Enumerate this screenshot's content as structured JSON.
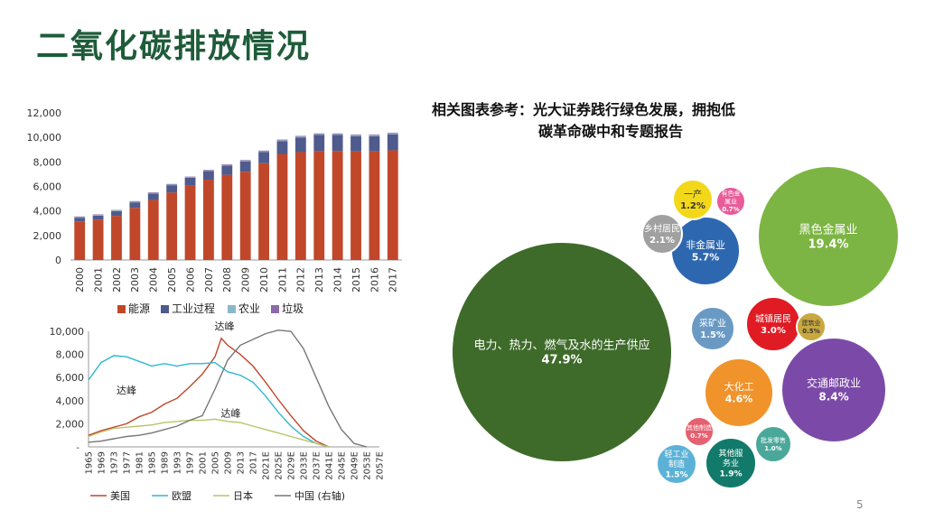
{
  "title": "二氧化碳排放情况",
  "reference_line1": "相关图表参考：光大证券践行绿色发展，拥抱低",
  "reference_line2": "碳革命碳中和专题报告",
  "page_number": "5",
  "chart_data": [
    {
      "type": "bar",
      "stacked": true,
      "categories": [
        "2000",
        "2001",
        "2002",
        "2003",
        "2004",
        "2005",
        "2006",
        "2007",
        "2008",
        "2009",
        "2010",
        "2011",
        "2012",
        "2013",
        "2014",
        "2015",
        "2016",
        "2017"
      ],
      "ylim": [
        0,
        12000
      ],
      "yticks": [
        "0",
        "2,000",
        "4,000",
        "6,000",
        "8,000",
        "10,000",
        "12,000"
      ],
      "grid": false,
      "legend_position": "bottom",
      "colors": {
        "能源": "#c0472a",
        "工业过程": "#4f5b8c",
        "农业": "#8ab8c8",
        "垃圾": "#8a6aa8"
      },
      "series": [
        {
          "name": "能源",
          "values": [
            3150,
            3300,
            3600,
            4250,
            4900,
            5500,
            6050,
            6550,
            6950,
            7200,
            7900,
            8650,
            8800,
            8900,
            8900,
            8850,
            8850,
            8950
          ]
        },
        {
          "name": "工业过程",
          "values": [
            300,
            320,
            380,
            450,
            520,
            600,
            650,
            700,
            750,
            850,
            900,
            1050,
            1200,
            1300,
            1300,
            1250,
            1250,
            1300
          ]
        },
        {
          "name": "农业",
          "values": [
            50,
            50,
            50,
            50,
            50,
            50,
            50,
            50,
            50,
            50,
            60,
            60,
            60,
            60,
            60,
            60,
            60,
            60
          ]
        },
        {
          "name": "垃圾",
          "values": [
            50,
            50,
            50,
            50,
            50,
            50,
            50,
            50,
            50,
            50,
            60,
            60,
            60,
            60,
            60,
            60,
            60,
            60
          ]
        }
      ]
    },
    {
      "type": "line",
      "xticks": [
        "1965",
        "1969",
        "1973",
        "1977",
        "1981",
        "1985",
        "1989",
        "1993",
        "1997",
        "2001",
        "2005",
        "2009",
        "2013",
        "2017",
        "2021E",
        "2025E",
        "2029E",
        "2033E",
        "2037E",
        "2041E",
        "2045E",
        "2049E",
        "2053E",
        "2057E"
      ],
      "ylim": [
        0,
        10000
      ],
      "yticks": [
        "2,000",
        "4,000",
        "6,000",
        "8,000",
        "10,000"
      ],
      "legend_position": "bottom",
      "annotations": [
        {
          "text": "达峰",
          "x": "2008",
          "y": 10150
        },
        {
          "text": "达峰",
          "x": "1977",
          "y": 4600
        },
        {
          "text": "达峰",
          "x": "2010",
          "y": 2600
        }
      ],
      "series": [
        {
          "name": "美国",
          "color": "#c0472a",
          "points": [
            [
              1965,
              1000
            ],
            [
              1969,
              1400
            ],
            [
              1973,
              1700
            ],
            [
              1977,
              2000
            ],
            [
              1981,
              2600
            ],
            [
              1985,
              3000
            ],
            [
              1989,
              3700
            ],
            [
              1993,
              4200
            ],
            [
              1997,
              5200
            ],
            [
              2001,
              6300
            ],
            [
              2005,
              7800
            ],
            [
              2007,
              9400
            ],
            [
              2009,
              8800
            ],
            [
              2013,
              8000
            ],
            [
              2017,
              7000
            ],
            [
              2021,
              5600
            ],
            [
              2025,
              4100
            ],
            [
              2029,
              2700
            ],
            [
              2033,
              1400
            ],
            [
              2037,
              500
            ],
            [
              2041,
              0
            ]
          ]
        },
        {
          "name": "欧盟",
          "color": "#2fb7d0",
          "points": [
            [
              1965,
              5800
            ],
            [
              1969,
              7300
            ],
            [
              1973,
              7900
            ],
            [
              1977,
              7800
            ],
            [
              1981,
              7400
            ],
            [
              1985,
              7000
            ],
            [
              1989,
              7200
            ],
            [
              1993,
              7000
            ],
            [
              1997,
              7200
            ],
            [
              2001,
              7200
            ],
            [
              2005,
              7300
            ],
            [
              2009,
              6500
            ],
            [
              2013,
              6200
            ],
            [
              2017,
              5600
            ],
            [
              2021,
              4400
            ],
            [
              2025,
              3000
            ],
            [
              2029,
              1800
            ],
            [
              2033,
              900
            ],
            [
              2037,
              300
            ],
            [
              2041,
              0
            ]
          ]
        },
        {
          "name": "日本",
          "color": "#b8c46a",
          "points": [
            [
              1965,
              900
            ],
            [
              1969,
              1300
            ],
            [
              1973,
              1600
            ],
            [
              1977,
              1700
            ],
            [
              1981,
              1800
            ],
            [
              1985,
              1900
            ],
            [
              1989,
              2100
            ],
            [
              1993,
              2200
            ],
            [
              1997,
              2300
            ],
            [
              2001,
              2300
            ],
            [
              2005,
              2400
            ],
            [
              2009,
              2200
            ],
            [
              2013,
              2100
            ],
            [
              2017,
              1800
            ],
            [
              2021,
              1500
            ],
            [
              2025,
              1200
            ],
            [
              2029,
              900
            ],
            [
              2033,
              600
            ],
            [
              2037,
              300
            ],
            [
              2041,
              0
            ]
          ]
        },
        {
          "name": "中国 (右轴)",
          "color": "#777777",
          "points": [
            [
              1965,
              400
            ],
            [
              1969,
              500
            ],
            [
              1973,
              700
            ],
            [
              1977,
              900
            ],
            [
              1981,
              1000
            ],
            [
              1985,
              1200
            ],
            [
              1989,
              1500
            ],
            [
              1993,
              1800
            ],
            [
              1997,
              2300
            ],
            [
              2001,
              2700
            ],
            [
              2005,
              5000
            ],
            [
              2009,
              7500
            ],
            [
              2013,
              8800
            ],
            [
              2017,
              9300
            ],
            [
              2021,
              9800
            ],
            [
              2025,
              10100
            ],
            [
              2029,
              10000
            ],
            [
              2033,
              8500
            ],
            [
              2037,
              6000
            ],
            [
              2041,
              3500
            ],
            [
              2045,
              1500
            ],
            [
              2049,
              300
            ],
            [
              2053,
              0
            ]
          ]
        }
      ]
    },
    {
      "type": "bubble",
      "bubbles": [
        {
          "name": "电力、热力、燃气及水的生产供应",
          "pct": "47.9%",
          "color": "#3e6b2a"
        },
        {
          "name": "黑色金属业",
          "pct": "19.4%",
          "color": "#7db544"
        },
        {
          "name": "交通邮政业",
          "pct": "8.4%",
          "color": "#7b4aa8"
        },
        {
          "name": "非金属业",
          "pct": "5.7%",
          "color": "#2d67b0"
        },
        {
          "name": "大化工",
          "pct": "4.6%",
          "color": "#f0932b"
        },
        {
          "name": "城镇居民",
          "pct": "3.0%",
          "color": "#e01b24"
        },
        {
          "name": "乡村居民",
          "pct": "2.1%",
          "color": "#a0a0a0"
        },
        {
          "name": "其他服务业",
          "pct": "1.9%",
          "color": "#127a6a"
        },
        {
          "name": "采矿业",
          "pct": "1.5%",
          "color": "#6a9ac4"
        },
        {
          "name": "轻工业制造",
          "pct": "1.5%",
          "color": "#5bb2d6"
        },
        {
          "name": "一产",
          "pct": "1.2%",
          "color": "#f3d81a"
        },
        {
          "name": "批发零售",
          "pct": "1.0%",
          "color": "#4aa89a"
        },
        {
          "name": "有色金属业",
          "pct": "0.7%",
          "color": "#e85c9a"
        },
        {
          "name": "其他制造",
          "pct": "0.7%",
          "color": "#e56070"
        },
        {
          "name": "建筑业",
          "pct": "0.5%",
          "color": "#c8a840"
        }
      ]
    }
  ]
}
